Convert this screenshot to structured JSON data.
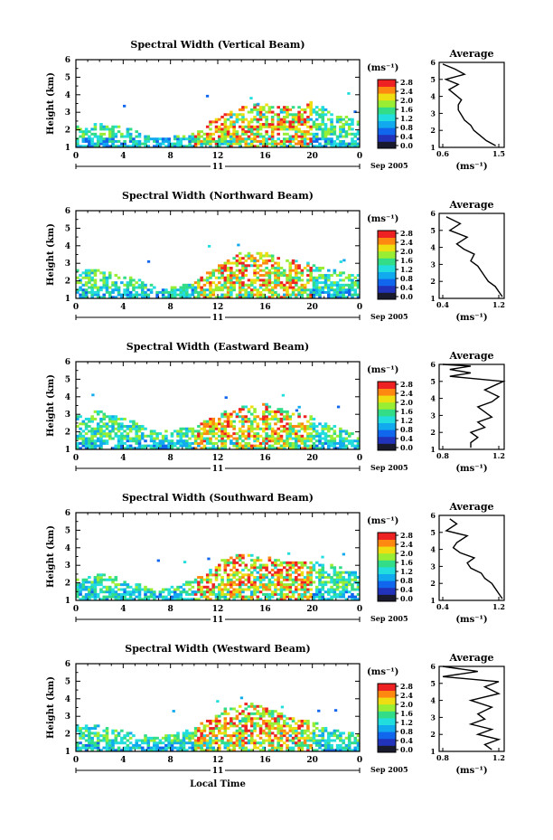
{
  "figure": {
    "xlabel": "Local Time",
    "ylabel": "Height (km)",
    "day": "11",
    "month_year": "Sep 2005",
    "colorbar_unit": "(ms⁻¹)",
    "avg_title": "Average",
    "avg_unit": "(ms⁻¹)",
    "x_ticks": [
      "0",
      "4",
      "8",
      "12",
      "16",
      "20",
      "0"
    ],
    "y_ticks": [
      "1",
      "2",
      "3",
      "4",
      "5",
      "6"
    ],
    "colorbar_ticks": [
      "0.0",
      "0.4",
      "0.8",
      "1.2",
      "1.6",
      "2.0",
      "2.4",
      "2.8"
    ],
    "colors": [
      "#1a1a2e",
      "#2233bb",
      "#1166ee",
      "#11aaee",
      "#22dddd",
      "#33dd88",
      "#99ee33",
      "#eedd11",
      "#ff8811",
      "#ee2222"
    ]
  },
  "panels": [
    {
      "title": "Spectral Width (Vertical Beam)",
      "avg_ticks": [
        "0.6",
        "1.5"
      ],
      "cb_ticks": [
        "0.0",
        "0.4",
        "0.8",
        "1.2",
        "1.6",
        "2.0",
        "2.4",
        "2.8"
      ]
    },
    {
      "title": "Spectral Width (Northward Beam)",
      "avg_ticks": [
        "0.4",
        "1.2"
      ],
      "cb_ticks": [
        "0.0",
        "0.4",
        "0.8",
        "1.2",
        "1.6",
        "2.0",
        "2.4",
        "2.8"
      ]
    },
    {
      "title": "Spectral Width (Eastward Beam)",
      "avg_ticks": [
        "0.8",
        "1.2"
      ],
      "cb_ticks": [
        "0.0",
        "0.4",
        "0.8",
        "1.2",
        "1.6",
        "2.0",
        "2.4",
        "2.8"
      ]
    },
    {
      "title": "Spectral Width (Southward Beam)",
      "avg_ticks": [
        "0.4",
        "1.2"
      ],
      "cb_ticks": [
        "0.0",
        "0.4",
        "0.8",
        "1.2",
        "1.6",
        "2.0",
        "2.4",
        "2.8"
      ]
    },
    {
      "title": "Spectral Width (Westward Beam)",
      "avg_ticks": [
        "0.8",
        "1.2"
      ],
      "cb_ticks": [
        "0.0",
        "0.4",
        "0.8",
        "1.2",
        "1.6",
        "2.0",
        "2.4",
        "2.8"
      ]
    }
  ],
  "chart_data": [
    {
      "type": "heatmap",
      "title": "Spectral Width (Vertical Beam)",
      "xlabel": "",
      "ylabel": "Height (km)",
      "xlim": [
        0,
        24
      ],
      "ylim": [
        1,
        6
      ],
      "zlim": [
        0,
        2.8
      ]
    },
    {
      "type": "line",
      "title": "Average",
      "xlabel": "(ms⁻¹)",
      "ylim": [
        1,
        6
      ],
      "x": [
        1.45,
        1.3,
        1.2,
        1.1,
        1.05,
        0.95,
        0.9,
        0.85,
        0.85,
        0.9,
        0.8,
        0.7,
        0.85,
        0.65,
        0.95,
        0.8,
        0.6
      ],
      "y": [
        1.1,
        1.4,
        1.7,
        2.0,
        2.3,
        2.6,
        2.9,
        3.2,
        3.5,
        3.8,
        4.1,
        4.4,
        4.7,
        5.0,
        5.3,
        5.6,
        5.9
      ]
    },
    {
      "type": "heatmap",
      "title": "Spectral Width (Northward Beam)",
      "xlabel": "",
      "ylabel": "Height (km)",
      "xlim": [
        0,
        24
      ],
      "ylim": [
        1,
        6
      ],
      "zlim": [
        0,
        2.8
      ]
    },
    {
      "type": "line",
      "title": "Average",
      "xlabel": "(ms⁻¹)",
      "ylim": [
        1,
        6
      ],
      "x": [
        1.25,
        1.2,
        1.15,
        1.05,
        1.0,
        0.95,
        0.9,
        0.8,
        0.85,
        0.7,
        0.6,
        0.75,
        0.5,
        0.65,
        0.45
      ],
      "y": [
        1.1,
        1.4,
        1.7,
        2.0,
        2.3,
        2.6,
        2.9,
        3.2,
        3.6,
        3.9,
        4.2,
        4.6,
        5.0,
        5.4,
        5.8
      ]
    },
    {
      "type": "heatmap",
      "title": "Spectral Width (Eastward Beam)",
      "xlabel": "",
      "ylabel": "Height (km)",
      "xlim": [
        0,
        24
      ],
      "ylim": [
        1,
        6
      ],
      "zlim": [
        0,
        2.8
      ]
    },
    {
      "type": "line",
      "title": "Average",
      "xlabel": "(ms⁻¹)",
      "ylim": [
        1,
        6
      ],
      "x": [
        1.0,
        1.0,
        1.05,
        1.0,
        1.1,
        1.05,
        1.15,
        1.1,
        1.05,
        1.15,
        1.2,
        1.1,
        1.25,
        0.85,
        1.0,
        0.85,
        1.0,
        0.8
      ],
      "y": [
        1.1,
        1.4,
        1.7,
        2.0,
        2.3,
        2.6,
        2.9,
        3.2,
        3.5,
        3.8,
        4.1,
        4.5,
        5.0,
        5.3,
        5.5,
        5.7,
        5.9,
        6.0
      ]
    },
    {
      "type": "heatmap",
      "title": "Spectral Width (Southward Beam)",
      "xlabel": "",
      "ylabel": "Height (km)",
      "xlim": [
        0,
        24
      ],
      "ylim": [
        1,
        6
      ],
      "zlim": [
        0,
        2.8
      ]
    },
    {
      "type": "line",
      "title": "Average",
      "xlabel": "(ms⁻¹)",
      "ylim": [
        1,
        6
      ],
      "x": [
        1.25,
        1.2,
        1.15,
        1.1,
        1.0,
        0.95,
        0.8,
        0.75,
        0.85,
        0.65,
        0.55,
        0.6,
        0.75,
        0.45,
        0.6,
        0.5
      ],
      "y": [
        1.1,
        1.4,
        1.7,
        2.0,
        2.3,
        2.6,
        2.9,
        3.2,
        3.5,
        3.8,
        4.1,
        4.4,
        4.8,
        5.1,
        5.5,
        5.8
      ]
    },
    {
      "type": "heatmap",
      "title": "Spectral Width (Westward Beam)",
      "xlabel": "Local Time",
      "ylabel": "Height (km)",
      "xlim": [
        0,
        24
      ],
      "ylim": [
        1,
        6
      ],
      "zlim": [
        0,
        2.8
      ]
    },
    {
      "type": "line",
      "title": "Average",
      "xlabel": "(ms⁻¹)",
      "ylim": [
        1,
        6
      ],
      "x": [
        1.15,
        1.1,
        1.2,
        1.05,
        1.15,
        1.0,
        1.1,
        1.05,
        1.15,
        1.0,
        1.2,
        1.1,
        1.2,
        0.8,
        1.05,
        0.8
      ],
      "y": [
        1.1,
        1.4,
        1.7,
        2.0,
        2.3,
        2.6,
        2.9,
        3.2,
        3.6,
        4.0,
        4.4,
        4.8,
        5.1,
        5.4,
        5.7,
        6.0
      ]
    }
  ]
}
